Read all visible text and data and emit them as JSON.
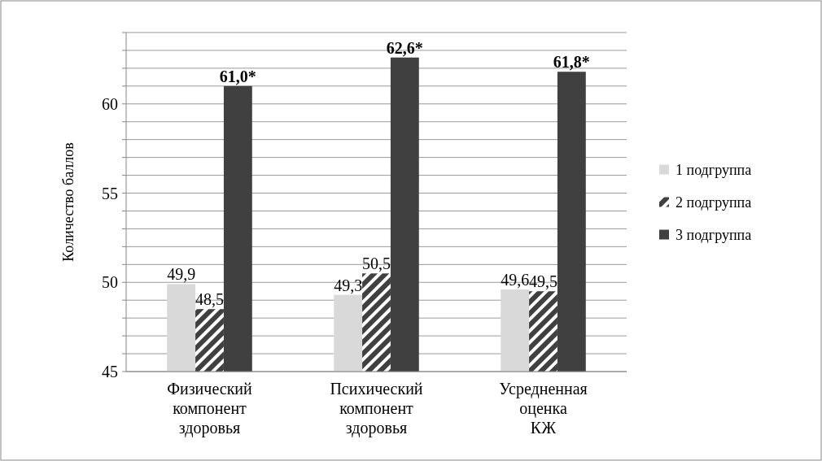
{
  "chart_data": {
    "type": "bar",
    "ylabel": "Количество баллов",
    "categories": [
      "Физический компонент здоровья",
      "Психический компонент здоровья",
      "Усредненная оценка КЖ"
    ],
    "series": [
      {
        "name": "1 подгруппа",
        "color": "#d9d9d9",
        "values": [
          49.9,
          49.3,
          49.6
        ],
        "value_labels": [
          "49,9",
          "49,3",
          "49,6"
        ]
      },
      {
        "name": "2 подгруппа",
        "color": "#404040",
        "values": [
          48.5,
          50.5,
          49.5
        ],
        "value_labels": [
          "48,5",
          "50,5",
          "49,5"
        ]
      },
      {
        "name": "3 подгруппа",
        "color": "#404040",
        "values": [
          61.0,
          62.6,
          61.8
        ],
        "value_labels": [
          "61,0*",
          "62,6*",
          "61,8*"
        ]
      }
    ],
    "ylim": [
      45,
      64
    ],
    "yticks": [
      45,
      {
        "value": 46,
        "label": null
      },
      {
        "value": 47,
        "label": null
      },
      {
        "value": 48,
        "label": null
      },
      {
        "value": 49,
        "label": null
      },
      50,
      {
        "value": 51,
        "label": null
      },
      {
        "value": 52,
        "label": null
      },
      {
        "value": 53,
        "label": null
      },
      {
        "value": 54,
        "label": null
      },
      55,
      {
        "value": 56,
        "label": null
      },
      {
        "value": 57,
        "label": null
      },
      {
        "value": 58,
        "label": null
      },
      {
        "value": 59,
        "label": null
      },
      60,
      {
        "value": 61,
        "label": null
      },
      {
        "value": 62,
        "label": null
      },
      {
        "value": 63,
        "label": null
      },
      {
        "value": 64,
        "label": null
      }
    ],
    "grid": "y",
    "legend": "right"
  }
}
